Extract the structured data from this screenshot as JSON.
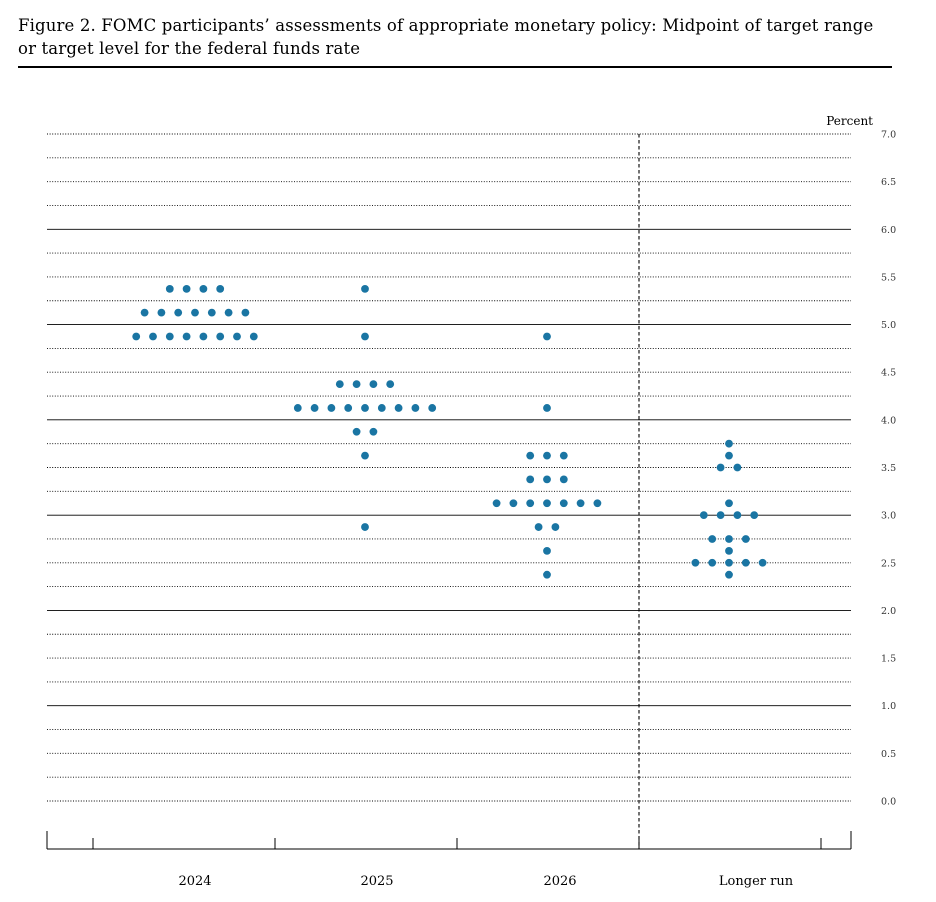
{
  "figure": {
    "title_line1": "Figure 2.  FOMC participants’ assessments of appropriate monetary policy: Midpoint of target range",
    "title_line2": "or target level for the federal funds rate"
  },
  "chart_data": {
    "type": "scatter",
    "subtype": "dot-plot",
    "title": "Figure 2. FOMC participants’ assessments of appropriate monetary policy: Midpoint of target range or target level for the federal funds rate",
    "ylabel": "Percent",
    "ylim": [
      0,
      7.0
    ],
    "y_ticks": [
      "0.0",
      "0.5",
      "1.0",
      "1.5",
      "2.0",
      "2.5",
      "3.0",
      "3.5",
      "4.0",
      "4.5",
      "5.0",
      "5.5",
      "6.0",
      "6.5",
      "7.0"
    ],
    "y_ticks_numeric": [
      0,
      0.5,
      1.0,
      1.5,
      2.0,
      2.5,
      3.0,
      3.5,
      4.0,
      4.5,
      5.0,
      5.5,
      6.0,
      6.5,
      7.0
    ],
    "grid_step": 0.25,
    "categories": [
      "2024",
      "2025",
      "2026",
      "Longer run"
    ],
    "dot_color": "#1a75a3",
    "series": [
      {
        "category": "2024",
        "points": [
          {
            "y": 5.375,
            "count": 4
          },
          {
            "y": 5.125,
            "count": 7
          },
          {
            "y": 4.875,
            "count": 8
          }
        ]
      },
      {
        "category": "2025",
        "points": [
          {
            "y": 5.375,
            "count": 1
          },
          {
            "y": 4.875,
            "count": 1
          },
          {
            "y": 4.375,
            "count": 4
          },
          {
            "y": 4.125,
            "count": 9
          },
          {
            "y": 3.875,
            "count": 2
          },
          {
            "y": 3.625,
            "count": 1
          },
          {
            "y": 2.875,
            "count": 1
          }
        ]
      },
      {
        "category": "2026",
        "points": [
          {
            "y": 4.875,
            "count": 1
          },
          {
            "y": 4.125,
            "count": 1
          },
          {
            "y": 3.625,
            "count": 3
          },
          {
            "y": 3.375,
            "count": 3
          },
          {
            "y": 3.125,
            "count": 7
          },
          {
            "y": 2.875,
            "count": 2
          },
          {
            "y": 2.625,
            "count": 1
          },
          {
            "y": 2.375,
            "count": 1
          }
        ]
      },
      {
        "category": "Longer run",
        "points": [
          {
            "y": 3.75,
            "count": 1
          },
          {
            "y": 3.625,
            "count": 1
          },
          {
            "y": 3.5,
            "count": 2
          },
          {
            "y": 3.125,
            "count": 1
          },
          {
            "y": 3.0,
            "count": 4
          },
          {
            "y": 2.75,
            "count": 3
          },
          {
            "y": 2.625,
            "count": 1
          },
          {
            "y": 2.5,
            "count": 5
          },
          {
            "y": 2.375,
            "count": 1
          }
        ]
      }
    ],
    "divider": "dashed vertical line before Longer run"
  }
}
